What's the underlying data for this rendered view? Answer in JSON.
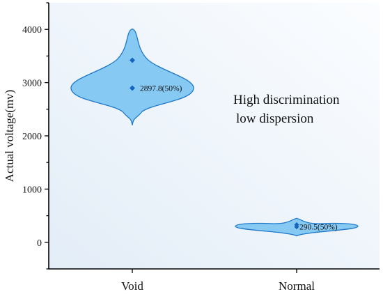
{
  "chart_data": {
    "type": "violin",
    "title": "",
    "xlabel": "",
    "ylabel": "Actual voltage(mv)",
    "ylim": [
      -500,
      4500
    ],
    "yticks": [
      0,
      1000,
      2000,
      3000,
      4000
    ],
    "categories": [
      "Void",
      "Normal"
    ],
    "series": [
      {
        "category": "Void",
        "min": 2200,
        "max": 4010,
        "mode": 2900,
        "mean": 3420,
        "median": 2897.8,
        "median_label": "2897.8(50%)"
      },
      {
        "category": "Normal",
        "min": 120,
        "max": 450,
        "mode": 300,
        "mean": 330,
        "median": 290.5,
        "median_label": "290.5(50%)"
      }
    ],
    "annotation": [
      "High discrimination",
      "low dispersion"
    ],
    "grid": false,
    "colors": {
      "violin_fill": "#86c9f3",
      "violin_stroke": "#1e78c8",
      "marker": "#1565c0",
      "background_start": "#e3edf7",
      "background_end": "#fbfdff"
    }
  }
}
